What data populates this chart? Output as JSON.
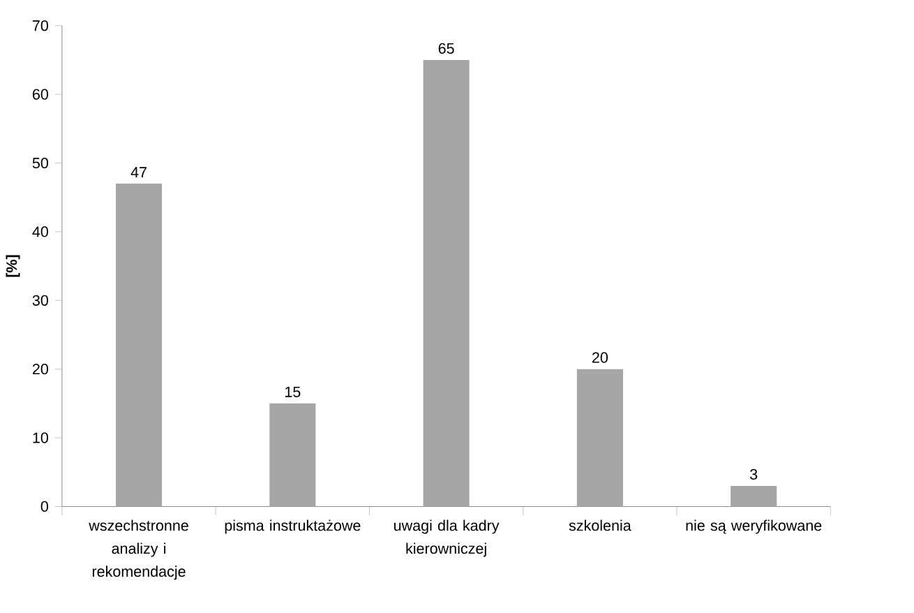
{
  "chart_data": {
    "type": "bar",
    "ylabel": "**[%]**",
    "categories": [
      "wszechstronne analizy i rekomendacje",
      "pisma instruktażowe",
      "uwagi dla kadry kierowniczej",
      "szkolenia",
      "nie są weryfikowane"
    ],
    "values": [
      47,
      15,
      65,
      20,
      3
    ],
    "color": "#a6a6a6",
    "ylim": [
      0,
      70
    ],
    "yticks": [
      0,
      10,
      20,
      30,
      40,
      50,
      60,
      70
    ],
    "data_labels": true,
    "grid": false
  }
}
